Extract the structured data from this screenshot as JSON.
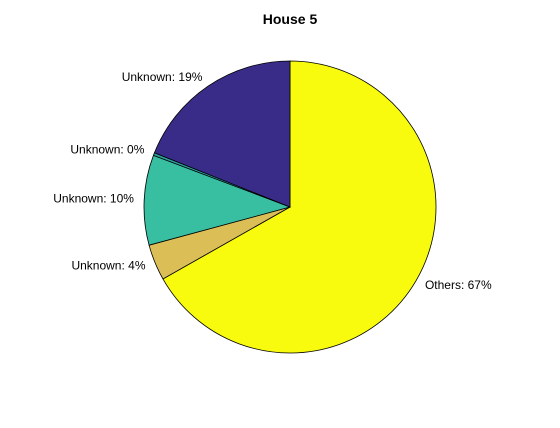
{
  "chart_data": {
    "type": "pie",
    "title": "House 5",
    "start_angle_deg": 90,
    "direction": "clockwise",
    "slices": [
      {
        "label": "Others: 67%",
        "value": 67,
        "color": "#f9fb0e"
      },
      {
        "label": "Unknown: 4%",
        "value": 4,
        "color": "#dbbe56"
      },
      {
        "label": "Unknown: 10%",
        "value": 10,
        "color": "#38bea0"
      },
      {
        "label": "Unknown: 0%",
        "value": 0.3,
        "color": "#2b9c9c"
      },
      {
        "label": "Unknown: 19%",
        "value": 19,
        "color": "#392c89"
      }
    ]
  }
}
